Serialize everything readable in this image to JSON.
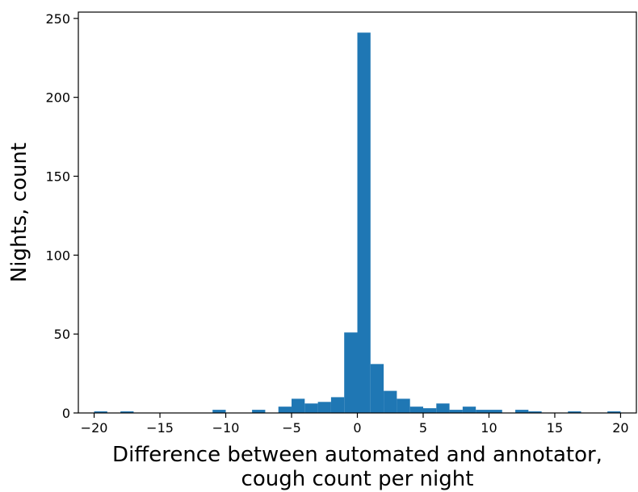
{
  "chart_data": {
    "type": "bar",
    "xlabel_lines": [
      "Difference between automated and annotator,",
      "cough count per night"
    ],
    "ylabel": "Nights, count",
    "xlim": [
      -21.2,
      21.2
    ],
    "ylim": [
      0,
      254
    ],
    "xticks": [
      -20,
      -15,
      -10,
      -5,
      0,
      5,
      10,
      15,
      20
    ],
    "xtick_labels": [
      "−20",
      "−15",
      "−10",
      "−5",
      "0",
      "5",
      "10",
      "15",
      "20"
    ],
    "yticks": [
      0,
      50,
      100,
      150,
      200,
      250
    ],
    "ytick_labels": [
      "0",
      "50",
      "100",
      "150",
      "200",
      "250"
    ],
    "bin_width": 1,
    "bins": [
      {
        "x0": -20,
        "count": 1
      },
      {
        "x0": -18,
        "count": 1
      },
      {
        "x0": -11,
        "count": 2
      },
      {
        "x0": -8,
        "count": 2
      },
      {
        "x0": -6,
        "count": 4
      },
      {
        "x0": -5,
        "count": 9
      },
      {
        "x0": -4,
        "count": 6
      },
      {
        "x0": -3,
        "count": 7
      },
      {
        "x0": -2,
        "count": 10
      },
      {
        "x0": -1,
        "count": 51
      },
      {
        "x0": 0,
        "count": 241
      },
      {
        "x0": 1,
        "count": 31
      },
      {
        "x0": 2,
        "count": 14
      },
      {
        "x0": 3,
        "count": 9
      },
      {
        "x0": 4,
        "count": 4
      },
      {
        "x0": 5,
        "count": 3
      },
      {
        "x0": 6,
        "count": 6
      },
      {
        "x0": 7,
        "count": 2
      },
      {
        "x0": 8,
        "count": 4
      },
      {
        "x0": 9,
        "count": 2
      },
      {
        "x0": 10,
        "count": 2
      },
      {
        "x0": 12,
        "count": 2
      },
      {
        "x0": 13,
        "count": 1
      },
      {
        "x0": 16,
        "count": 1
      },
      {
        "x0": 19,
        "count": 1
      }
    ],
    "bar_color": "#1f77b4",
    "grid": false,
    "legend": "none"
  }
}
